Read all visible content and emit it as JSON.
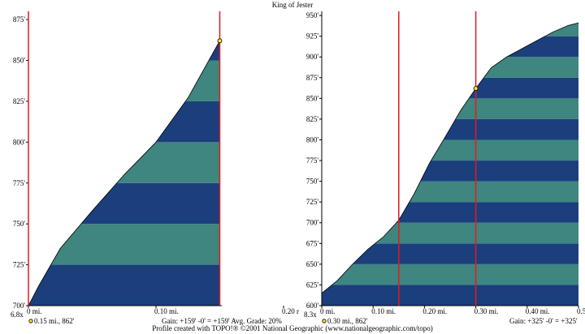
{
  "chart_data": {
    "title": "King of Jester",
    "footer": "Profile created with TOPO!® ©2001 National Geographic (www.nationalgeographic.com/topo)",
    "colors": {
      "band_dark": "#1b3f7d",
      "band_light": "#3f8580",
      "marker": "#e41a1c",
      "outline": "#000000",
      "point_fill": "#f5e642"
    },
    "panels": [
      {
        "type": "area",
        "elev_range": [
          700,
          880
        ],
        "band_interval": 25,
        "y_ticks": [
          700,
          725,
          750,
          775,
          800,
          825,
          850,
          875
        ],
        "y_tick_labels": [
          "700'",
          "725'",
          "750'",
          "775'",
          "800'",
          "825'",
          "850'",
          "875'"
        ],
        "x_range": [
          0,
          0.2
        ],
        "x_ticks": [
          0,
          0.1,
          0.2
        ],
        "x_tick_labels": [
          "0 mi.",
          "0.10 mi.",
          "0.20 r"
        ],
        "vertical_exaggeration": "6.8x",
        "profile": {
          "x": [
            0,
            0.008,
            0.025,
            0.05,
            0.075,
            0.1,
            0.125,
            0.15
          ],
          "y": [
            700,
            712,
            735,
            758,
            780,
            800,
            827,
            862
          ]
        },
        "markers": [
          0,
          0.15
        ],
        "highlight_point": {
          "x": 0.15,
          "y": 862
        },
        "info_label": "0.15 mi., 862'",
        "stats": "Gain: +159' -0' = +159'   Avg. Grade: 20%"
      },
      {
        "type": "area",
        "elev_range": [
          600,
          955
        ],
        "band_interval": 25,
        "y_ticks": [
          600,
          625,
          650,
          675,
          700,
          725,
          750,
          775,
          800,
          825,
          850,
          875,
          900,
          925,
          950
        ],
        "y_tick_labels": [
          "600'",
          "625'",
          "650'",
          "675'",
          "700'",
          "725'",
          "750'",
          "775'",
          "800'",
          "825'",
          "850'",
          "875'",
          "900'",
          "925'",
          "950'"
        ],
        "x_range": [
          0,
          0.5
        ],
        "x_ticks": [
          0,
          0.1,
          0.2,
          0.3,
          0.4,
          0.5
        ],
        "x_tick_labels": [
          "0 mi.",
          "0.10 mi.",
          "0.20 mi.",
          "0.30 mi.",
          "0.40 mi.",
          "0.50 m"
        ],
        "vertical_exaggeration": "8.3x",
        "profile": {
          "x": [
            0,
            0.03,
            0.06,
            0.09,
            0.12,
            0.15,
            0.18,
            0.21,
            0.24,
            0.27,
            0.3,
            0.33,
            0.36,
            0.39,
            0.42,
            0.45,
            0.48,
            0.5
          ],
          "y": [
            615,
            630,
            650,
            668,
            683,
            703,
            735,
            772,
            803,
            835,
            862,
            887,
            900,
            910,
            920,
            930,
            938,
            941
          ]
        },
        "markers": [
          0.15,
          0.3
        ],
        "highlight_point": {
          "x": 0.3,
          "y": 862
        },
        "info_label": "0.30 mi., 862'",
        "stats": "Gain: +325' -0' = +325'"
      }
    ]
  }
}
